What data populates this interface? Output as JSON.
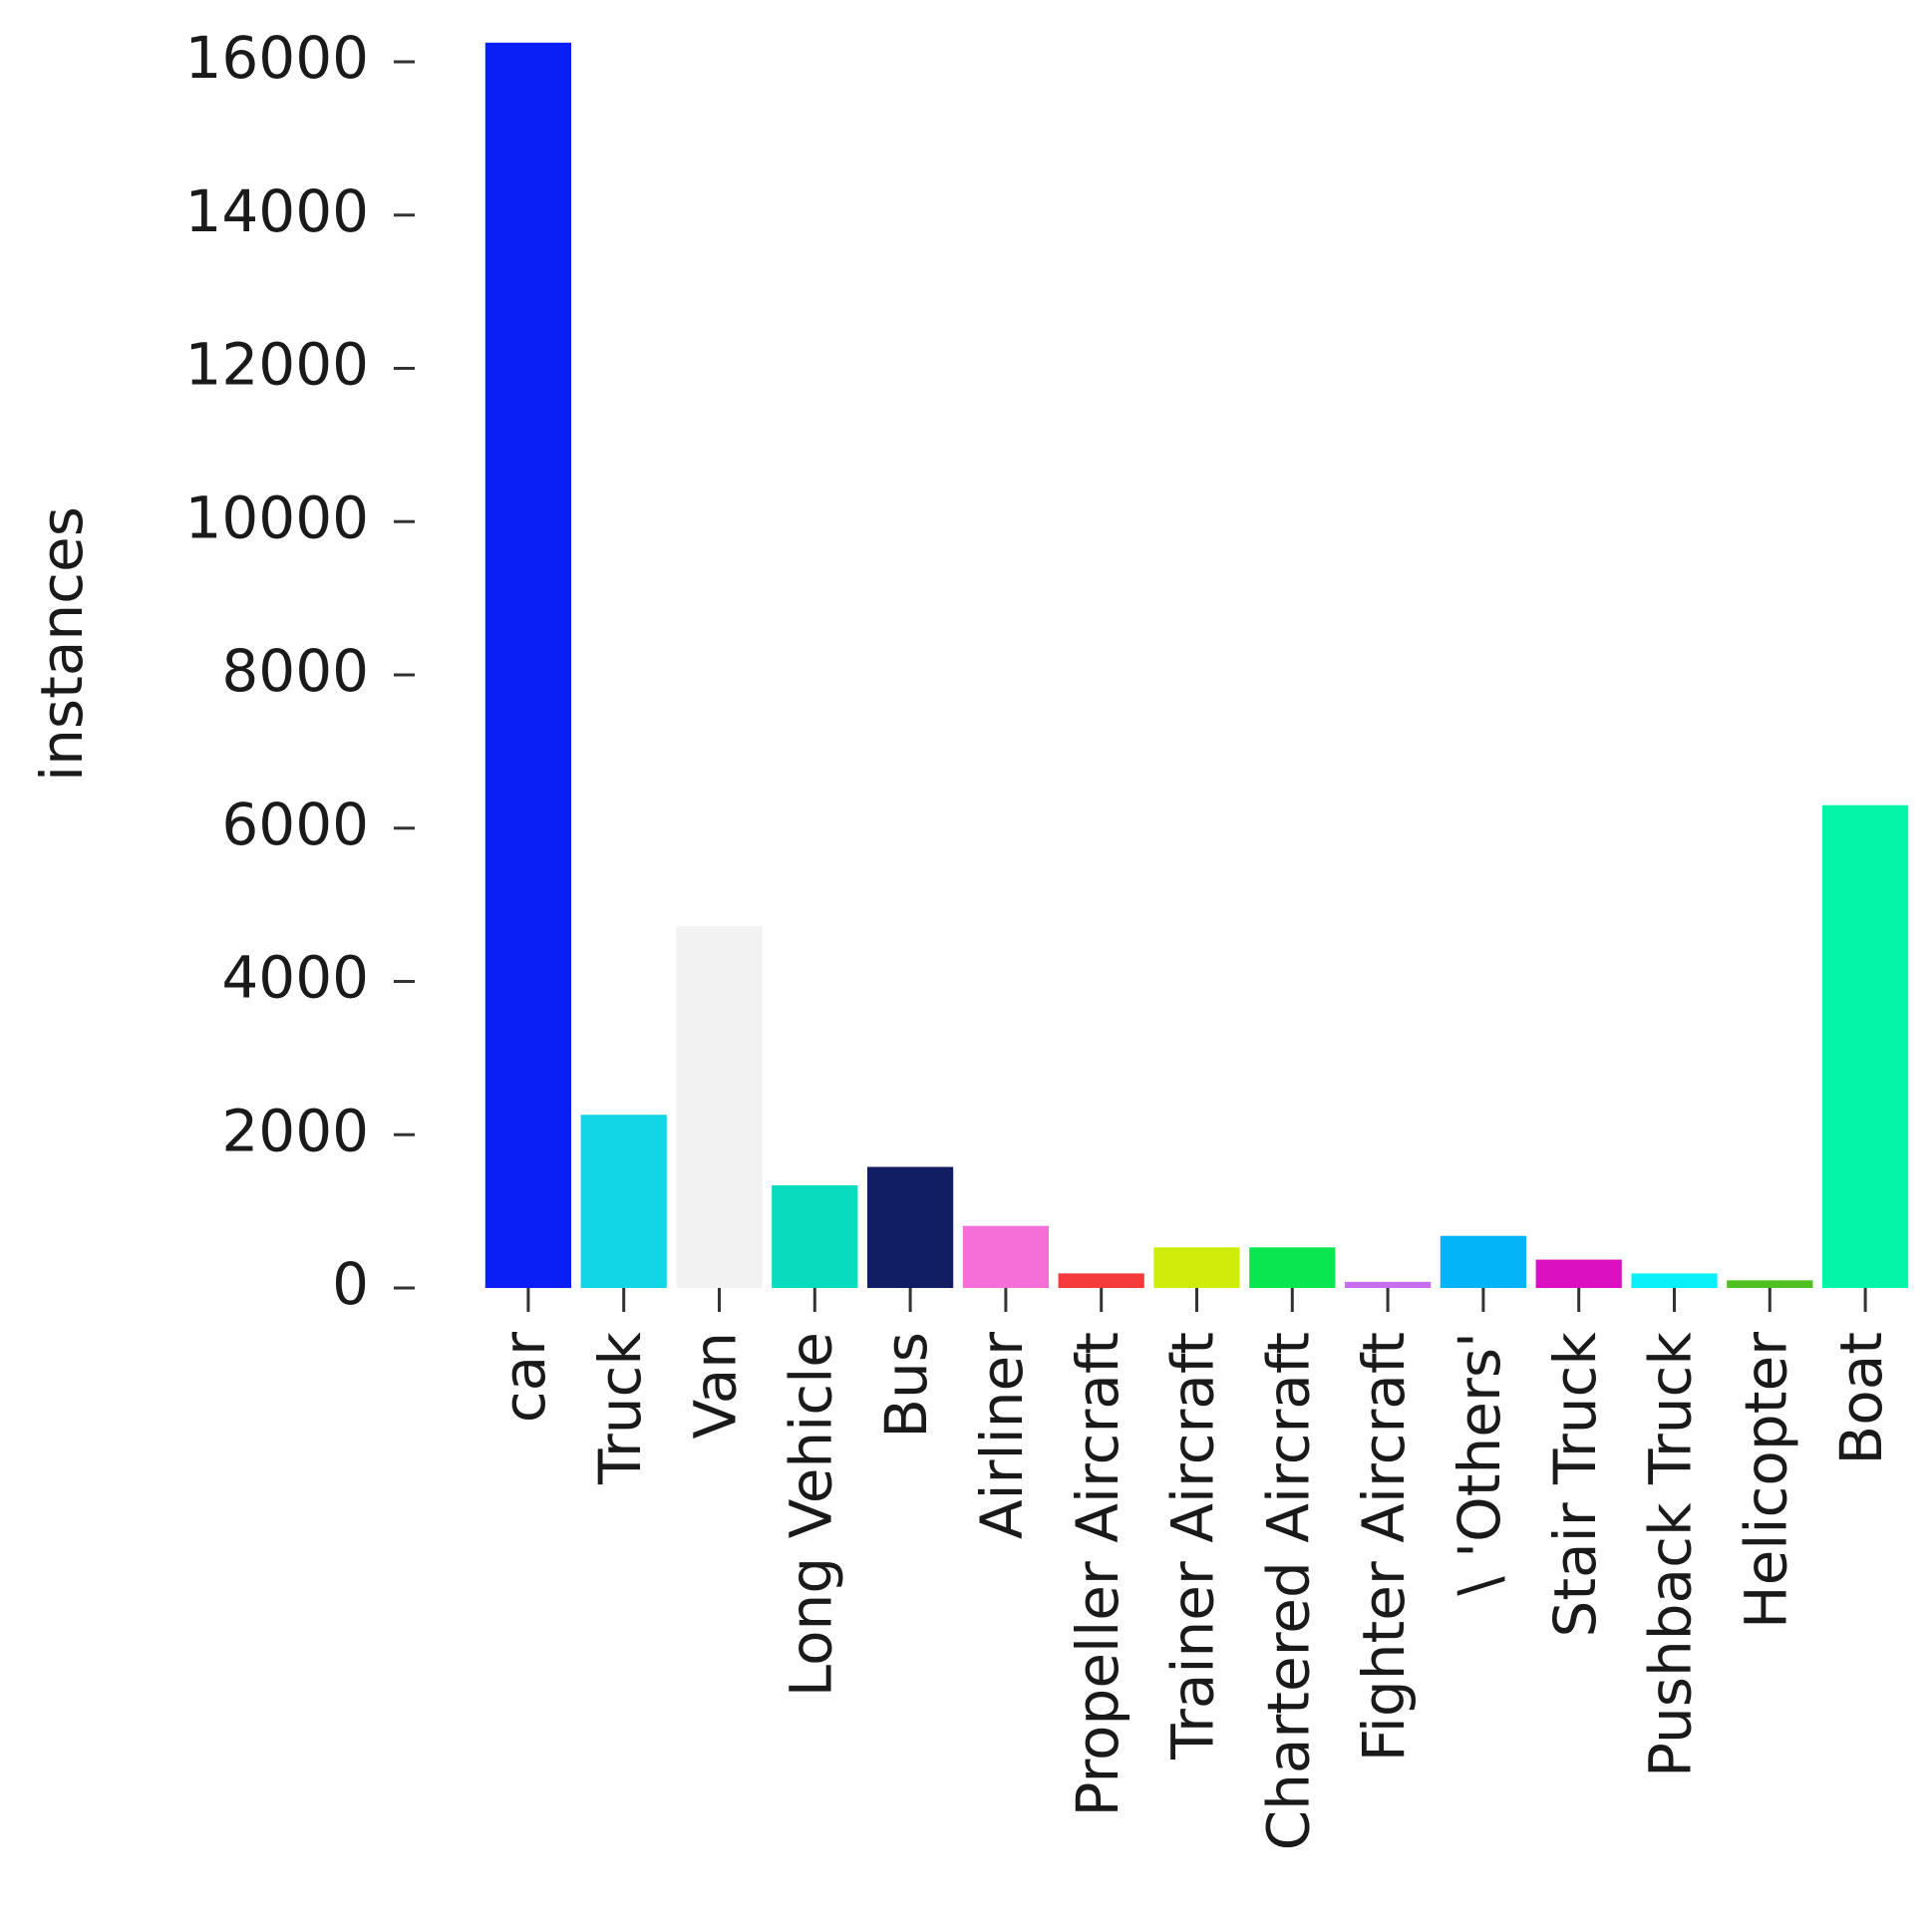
{
  "chart_data": {
    "type": "bar",
    "y_label": "instances",
    "categories": [
      "car",
      "Truck",
      "Van",
      "Long Vehicle",
      "Bus",
      "Airliner",
      "Propeller Aircraft",
      "Trainer Aircraft",
      "Chartered Aircraft",
      "Fighter Aircraft",
      "\\ 'Others'",
      "Stair Truck",
      "Pushback Truck",
      "Helicopter",
      "Boat"
    ],
    "values": [
      16250,
      2260,
      4720,
      1340,
      1580,
      810,
      190,
      530,
      530,
      80,
      680,
      370,
      190,
      100,
      6300
    ],
    "colors": [
      "#0a1ff5",
      "#12d6e6",
      "#f2f2f2",
      "#08dcbe",
      "#121e64",
      "#f66fd8",
      "#f53a3a",
      "#cfec0a",
      "#0ae650",
      "#c86ef0",
      "#04b4f8",
      "#da0fc0",
      "#0af0f8",
      "#50c020",
      "#05f5a8"
    ],
    "ylim": [
      0,
      16000
    ],
    "yticks": [
      0,
      2000,
      4000,
      6000,
      8000,
      10000,
      12000,
      14000,
      16000
    ],
    "grid": false
  }
}
